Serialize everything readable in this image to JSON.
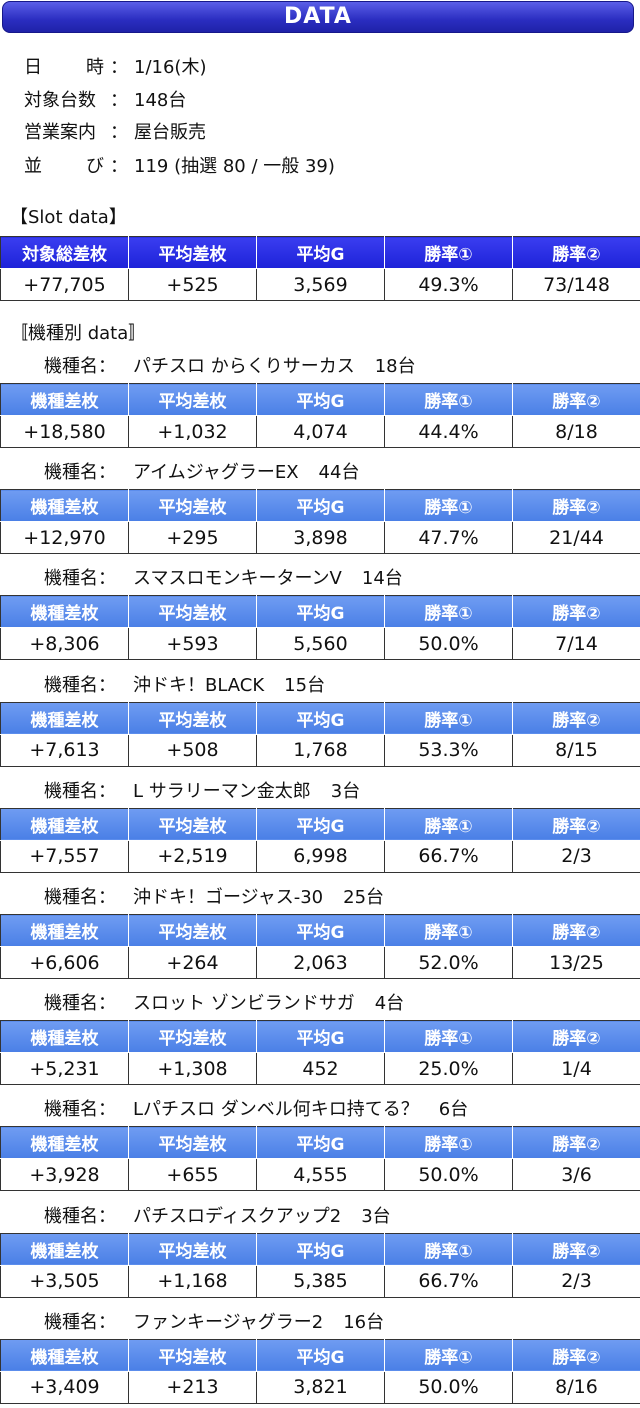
{
  "banner": {
    "title": "DATA"
  },
  "info": [
    {
      "label": "日時",
      "colon": "：",
      "value": "1/16(木)"
    },
    {
      "label": "対象台数",
      "colon": "：",
      "value": "148台"
    },
    {
      "label": "営業案内",
      "colon": "：",
      "value": "屋台販売"
    },
    {
      "label": "並び",
      "colon": "：",
      "value": "119 (抽選 80 / 一般 39)"
    }
  ],
  "slot_section": {
    "heading": "【Slot data】",
    "headers": [
      "対象総差枚",
      "平均差枚",
      "平均G",
      "勝率①",
      "勝率②"
    ],
    "row": [
      "+77,705",
      "+525",
      "3,569",
      "49.3%",
      "73/148"
    ]
  },
  "model_section": {
    "heading": "〚機種別 data〛",
    "label": "機種名",
    "colon": "：",
    "headers": [
      "機種差枚",
      "平均差枚",
      "平均G",
      "勝率①",
      "勝率②"
    ],
    "models": [
      {
        "name": "パチスロ からくりサーカス",
        "count": "18台",
        "row": [
          "+18,580",
          "+1,032",
          "4,074",
          "44.4%",
          "8/18"
        ]
      },
      {
        "name": "アイムジャグラーEX",
        "count": "44台",
        "row": [
          "+12,970",
          "+295",
          "3,898",
          "47.7%",
          "21/44"
        ]
      },
      {
        "name": "スマスロモンキーターンV",
        "count": "14台",
        "row": [
          "+8,306",
          "+593",
          "5,560",
          "50.0%",
          "7/14"
        ]
      },
      {
        "name": "沖ドキ！BLACK",
        "count": "15台",
        "row": [
          "+7,613",
          "+508",
          "1,768",
          "53.3%",
          "8/15"
        ]
      },
      {
        "name": "L サラリーマン金太郎",
        "count": "3台",
        "row": [
          "+7,557",
          "+2,519",
          "6,998",
          "66.7%",
          "2/3"
        ]
      },
      {
        "name": "沖ドキ！ゴージャス-30",
        "count": "25台",
        "row": [
          "+6,606",
          "+264",
          "2,063",
          "52.0%",
          "13/25"
        ]
      },
      {
        "name": "スロット ゾンビランドサガ",
        "count": "4台",
        "row": [
          "+5,231",
          "+1,308",
          "452",
          "25.0%",
          "1/4"
        ]
      },
      {
        "name": "Lパチスロ ダンベル何キロ持てる？",
        "count": "6台",
        "row": [
          "+3,928",
          "+655",
          "4,555",
          "50.0%",
          "3/6"
        ]
      },
      {
        "name": "パチスロディスクアップ2",
        "count": "3台",
        "row": [
          "+3,505",
          "+1,168",
          "5,385",
          "66.7%",
          "2/3"
        ]
      },
      {
        "name": "ファンキージャグラー2",
        "count": "16台",
        "row": [
          "+3,409",
          "+213",
          "3,821",
          "50.0%",
          "8/16"
        ]
      }
    ]
  }
}
